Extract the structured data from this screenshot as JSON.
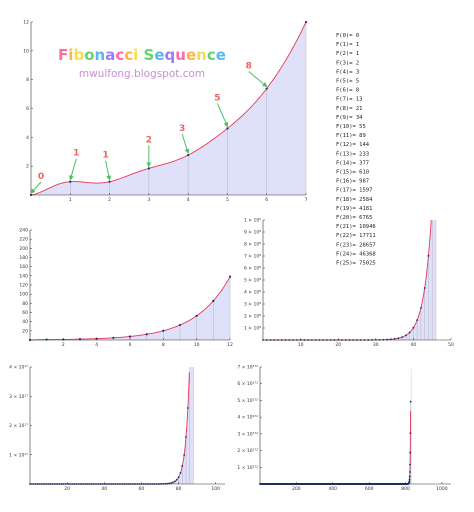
{
  "header": {
    "title": "Fibonacci Sequence",
    "subtitle": "mwulfong.blogspot.com"
  },
  "colors": {
    "curve": "#e8395a",
    "fill": "#dfe1fb",
    "points": "#1a2f6e",
    "grid": "#aaaaaa",
    "arrow": "#4fbf5f",
    "annotation": "#f0635a",
    "title_palette": [
      "#ff6aa8",
      "#ffb347",
      "#f6e04a",
      "#67d36d",
      "#58b8f2",
      "#9b7ef5"
    ]
  },
  "sequence_list": [
    "F(0)= 0",
    "F(1)= 1",
    "F(2)= 1",
    "F(3)= 2",
    "F(4)= 3",
    "F(5)= 5",
    "F(6)= 8",
    "F(7)= 13",
    "F(8)= 21",
    "F(9)= 34",
    "F(10)= 55",
    "F(11)= 89",
    "F(12)= 144",
    "F(13)= 233",
    "F(14)= 377",
    "F(15)= 610",
    "F(16)= 987",
    "F(17)= 1597",
    "F(18)= 2584",
    "F(19)= 4181",
    "F(20)= 6765",
    "F(21)= 10946",
    "F(22)= 17711",
    "F(23)= 28657",
    "F(24)= 46368",
    "F(25)= 75025"
  ],
  "chart_data": [
    {
      "type": "area",
      "description_of_curve": "continuous Fibonacci function Re(phi^x - cos(pi x) phi^-x)/sqrt5",
      "x": [
        0,
        1,
        2,
        3,
        4,
        5,
        6,
        7
      ],
      "points": [
        0,
        1,
        1,
        2,
        3,
        5,
        8,
        13
      ],
      "xlim": [
        0,
        7
      ],
      "ylim": [
        0,
        13
      ],
      "xticks": [
        "1",
        "2",
        "3",
        "4",
        "5",
        "6",
        "7"
      ],
      "yticks": [
        "2",
        "4",
        "6",
        "8",
        "10",
        "12"
      ],
      "annotations": [
        {
          "x": 0,
          "label": "0"
        },
        {
          "x": 1,
          "label": "1"
        },
        {
          "x": 2,
          "label": "1"
        },
        {
          "x": 3,
          "label": "2"
        },
        {
          "x": 4,
          "label": "3"
        },
        {
          "x": 5,
          "label": "5"
        },
        {
          "x": 6,
          "label": "8"
        }
      ],
      "grid": "vertical lines at integer x"
    },
    {
      "type": "area",
      "x": [
        0,
        1,
        2,
        3,
        4,
        5,
        6,
        7,
        8,
        9,
        10,
        11,
        12
      ],
      "points": [
        0,
        1,
        1,
        2,
        3,
        5,
        8,
        13,
        21,
        34,
        55,
        89,
        144
      ],
      "xlim": [
        0,
        12
      ],
      "ylim": [
        0,
        250
      ],
      "xticks": [
        "2",
        "4",
        "6",
        "8",
        "10",
        "12"
      ],
      "yticks": [
        "20",
        "40",
        "60",
        "80",
        "100",
        "120",
        "140",
        "160",
        "180",
        "200",
        "220",
        "240"
      ],
      "grid": "vertical lines at integer x"
    },
    {
      "type": "area",
      "xlim": [
        0,
        50
      ],
      "ylim": [
        0,
        1000000000
      ],
      "point_range": [
        0,
        44
      ],
      "xticks": [
        "10",
        "20",
        "30",
        "40",
        "50"
      ],
      "yticks": [
        "1 × 10⁸",
        "2 × 10⁸",
        "3 × 10⁸",
        "4 × 10⁸",
        "5 × 10⁸",
        "6 × 10⁸",
        "7 × 10⁸",
        "8 × 10⁸",
        "9 × 10⁸",
        "1 × 10⁹"
      ],
      "grid": "vertical lines at integer x"
    },
    {
      "type": "area",
      "xlim": [
        0,
        105
      ],
      "ylim": [
        0,
        4e+17
      ],
      "point_range": [
        0,
        86
      ],
      "xticks": [
        "20",
        "40",
        "60",
        "80",
        "100"
      ],
      "yticks": [
        "1 × 10¹⁷",
        "2 × 10¹⁷",
        "3 × 10¹⁷",
        "4 × 10¹⁷"
      ],
      "grid": "vertical lines at integer x"
    },
    {
      "type": "area",
      "xlim": [
        0,
        1050
      ],
      "ylim": [
        0,
        7e+172
      ],
      "point_range": [
        0,
        832
      ],
      "xticks": [
        "200",
        "400",
        "600",
        "800",
        "1000"
      ],
      "yticks": [
        "1 × 10¹⁷²",
        "2 × 10¹⁷²",
        "3 × 10¹⁷²",
        "4 × 10¹⁷²",
        "5 × 10¹⁷²",
        "6 × 10¹⁷²",
        "7 × 10¹⁷²"
      ],
      "grid": "vertical lines at integer x"
    }
  ]
}
